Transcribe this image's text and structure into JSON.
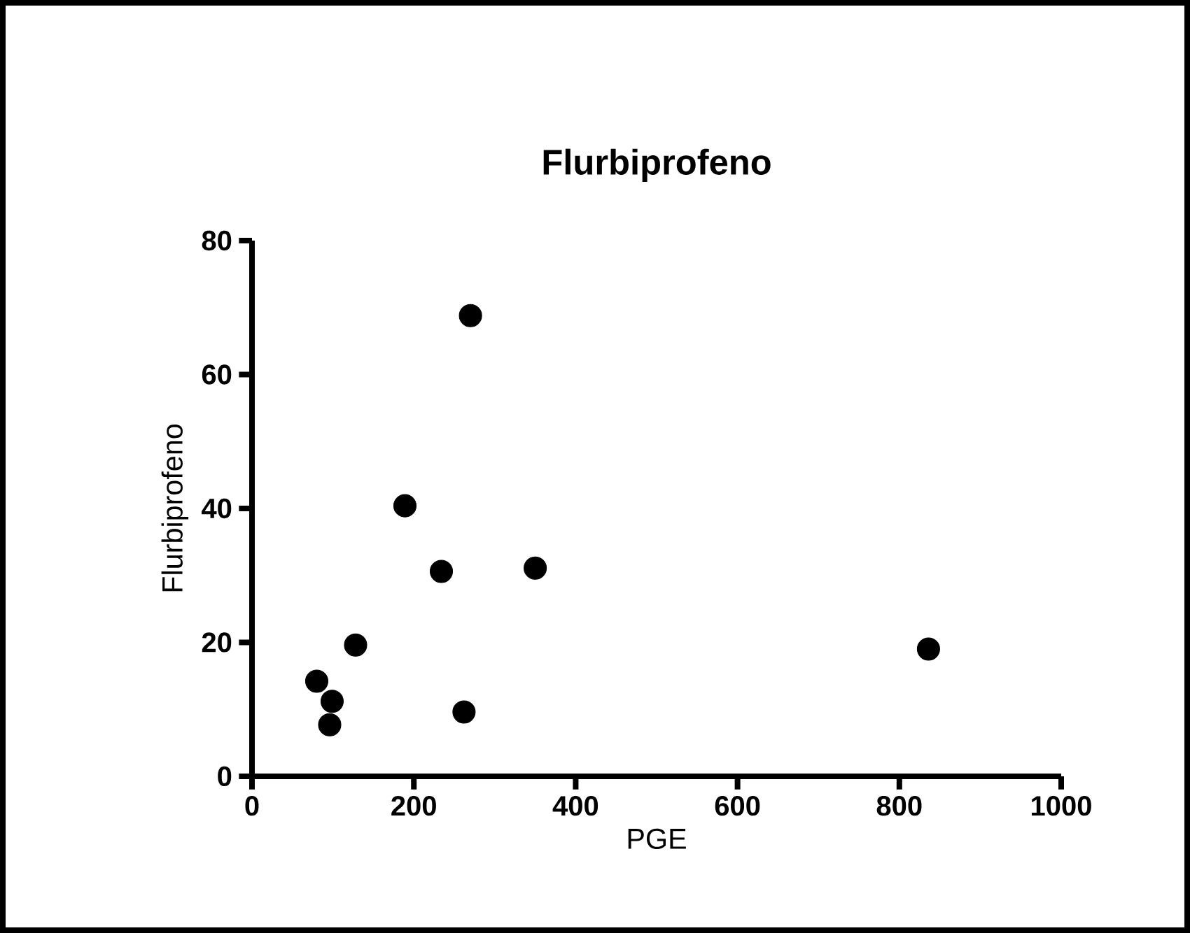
{
  "chart_data": {
    "type": "scatter",
    "title": "Flurbiprofeno",
    "xlabel": "PGE",
    "ylabel": "Flurbiprofeno",
    "x": [
      270,
      189,
      234,
      350,
      128,
      80,
      99,
      96,
      262,
      836
    ],
    "values": [
      68.8,
      40.4,
      30.6,
      31.1,
      19.6,
      14.2,
      11.2,
      7.7,
      9.6,
      19.0
    ],
    "color": "#000000",
    "marker": "circle",
    "xlim": [
      0,
      1000
    ],
    "ylim": [
      0,
      80
    ],
    "xticks": [
      0,
      200,
      400,
      600,
      800,
      1000
    ],
    "yticks": [
      0,
      20,
      40,
      60,
      80
    ]
  }
}
